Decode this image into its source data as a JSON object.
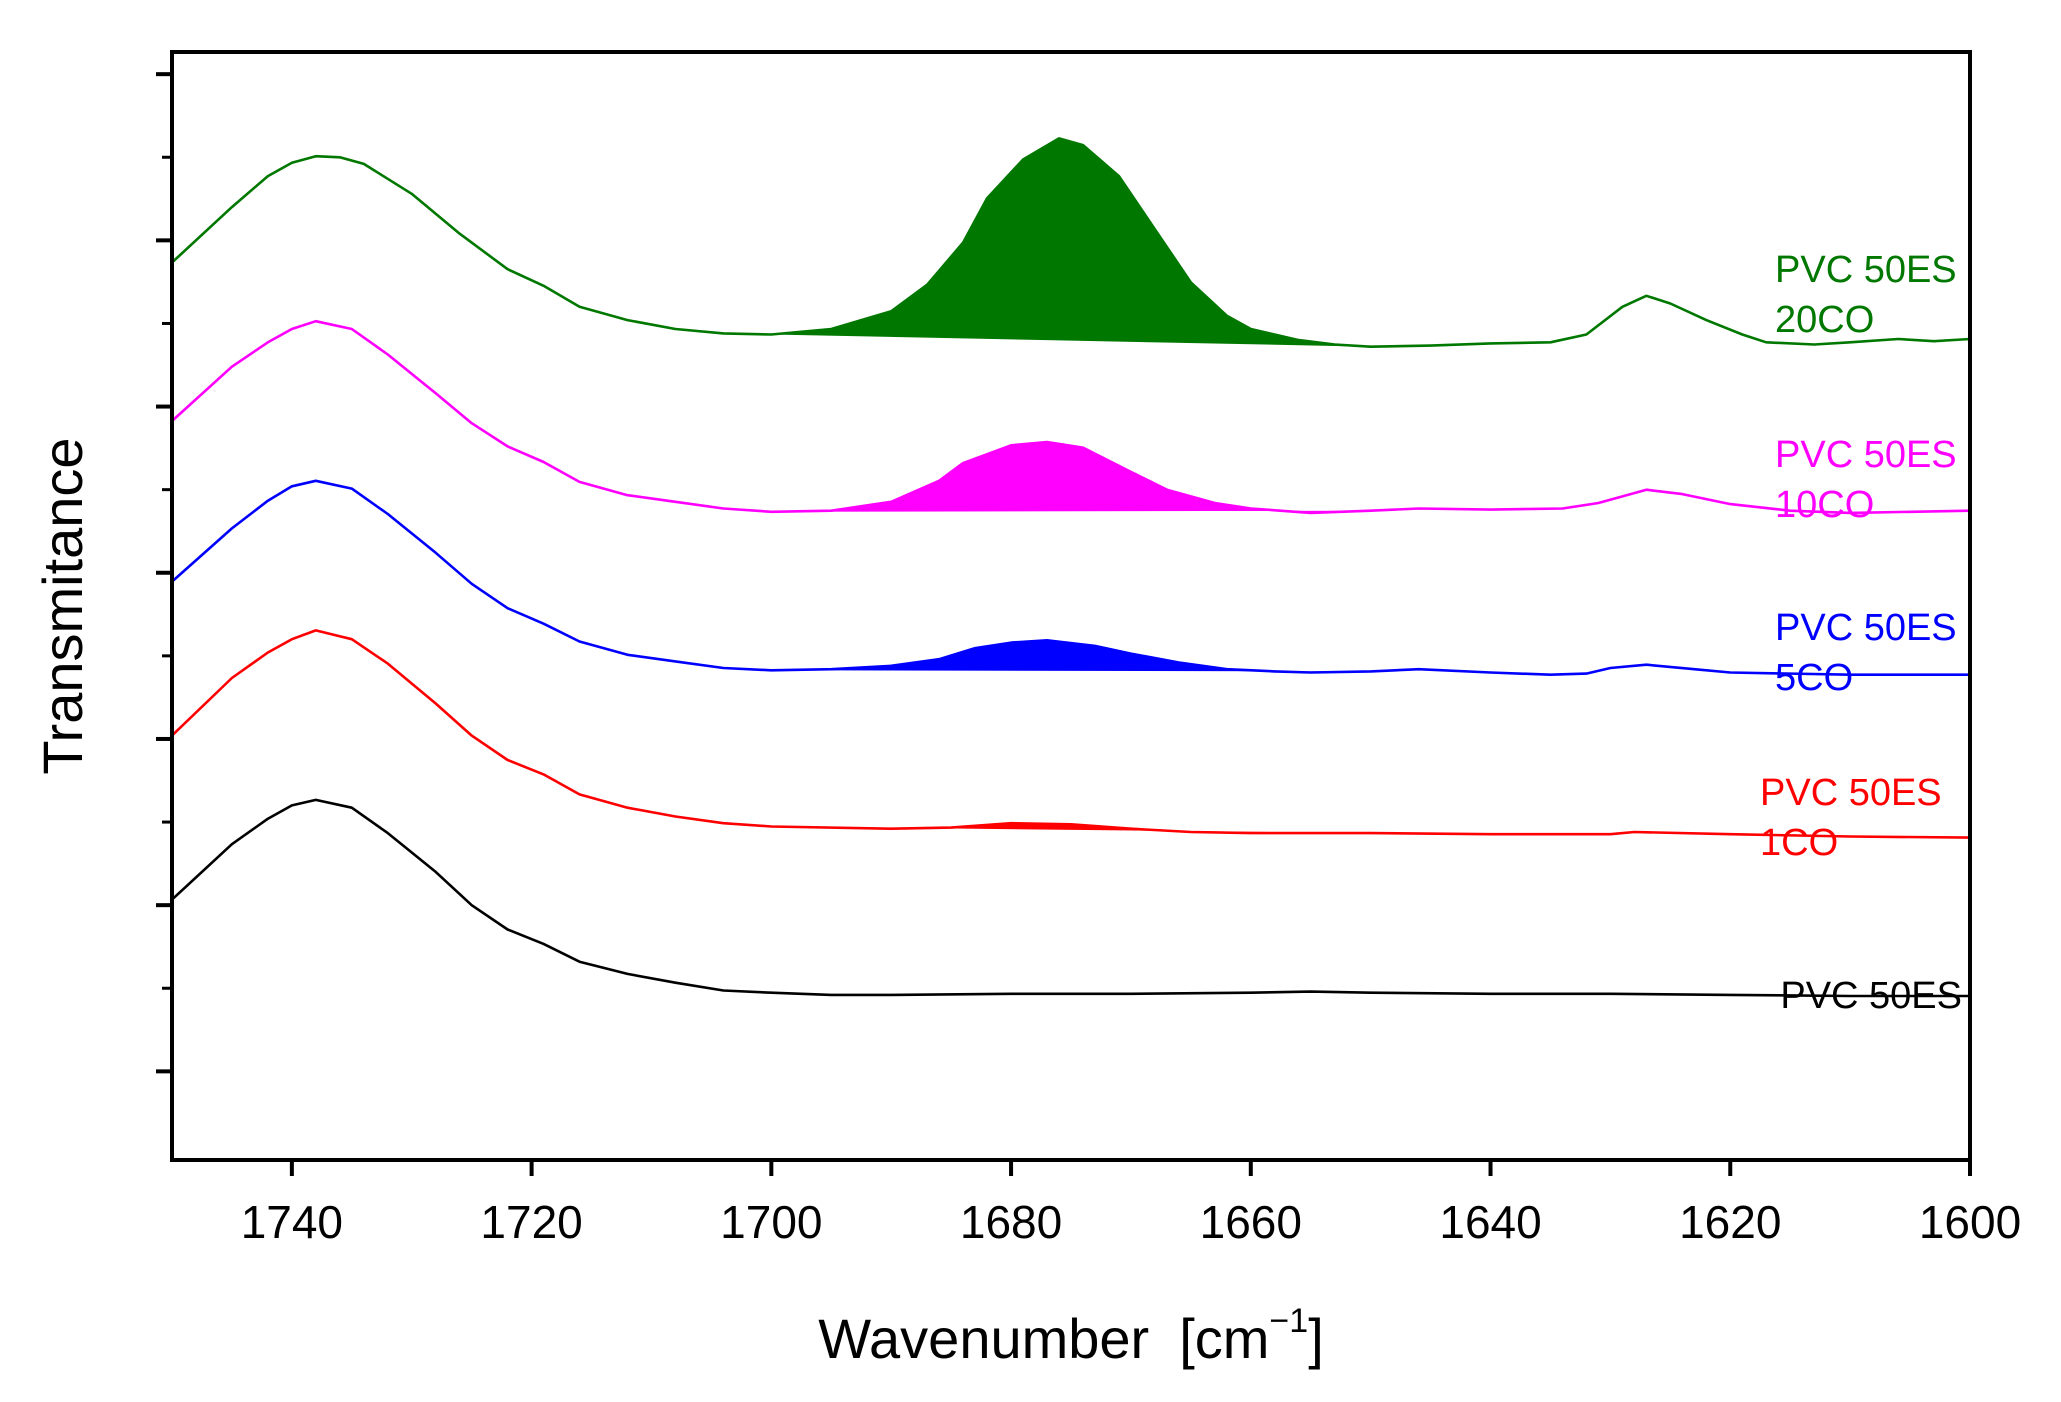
{
  "chart_data": {
    "type": "line",
    "xlabel": "Wavenumber",
    "xunit_base": "[cm",
    "xunit_exp": "−1",
    "xunit_close": "]",
    "ylabel": "Transmitance",
    "xlim": [
      1750,
      1600
    ],
    "x_reversed": true,
    "x_ticks": [
      1740,
      1720,
      1700,
      1680,
      1660,
      1640,
      1620,
      1600
    ],
    "y_ticks_unlabeled": true,
    "y_range": [
      0,
      100
    ],
    "fill_region": [
      1700,
      1650
    ],
    "series": [
      {
        "name": "PVC 50ES",
        "label_lines": [
          "PVC 50ES"
        ],
        "color": "#000000",
        "filled": false,
        "points": [
          [
            1750,
            23.5
          ],
          [
            1745,
            28.5
          ],
          [
            1742,
            30.8
          ],
          [
            1740,
            32.0
          ],
          [
            1738,
            32.5
          ],
          [
            1735,
            31.8
          ],
          [
            1732,
            29.5
          ],
          [
            1728,
            26.0
          ],
          [
            1725,
            23.0
          ],
          [
            1722,
            20.8
          ],
          [
            1719,
            19.5
          ],
          [
            1716,
            17.9
          ],
          [
            1712,
            16.8
          ],
          [
            1708,
            16.0
          ],
          [
            1704,
            15.3
          ],
          [
            1700,
            15.1
          ],
          [
            1695,
            14.9
          ],
          [
            1690,
            14.9
          ],
          [
            1680,
            15.0
          ],
          [
            1670,
            15.0
          ],
          [
            1660,
            15.1
          ],
          [
            1655,
            15.2
          ],
          [
            1650,
            15.1
          ],
          [
            1640,
            15.0
          ],
          [
            1630,
            15.0
          ],
          [
            1620,
            14.9
          ],
          [
            1610,
            14.8
          ],
          [
            1600,
            14.8
          ]
        ]
      },
      {
        "name": "PVC 50ES 1CO",
        "label_lines": [
          "PVC 50ES",
          "1CO"
        ],
        "color": "#ff0000",
        "filled": true,
        "points": [
          [
            1750,
            38.3
          ],
          [
            1745,
            43.5
          ],
          [
            1742,
            45.8
          ],
          [
            1740,
            47.0
          ],
          [
            1738,
            47.8
          ],
          [
            1735,
            47.0
          ],
          [
            1732,
            44.8
          ],
          [
            1728,
            41.2
          ],
          [
            1725,
            38.3
          ],
          [
            1722,
            36.1
          ],
          [
            1719,
            34.8
          ],
          [
            1716,
            33.0
          ],
          [
            1712,
            31.8
          ],
          [
            1708,
            31.0
          ],
          [
            1704,
            30.4
          ],
          [
            1700,
            30.1
          ],
          [
            1690,
            29.9
          ],
          [
            1685,
            30.0
          ],
          [
            1680,
            30.4
          ],
          [
            1675,
            30.3
          ],
          [
            1670,
            29.9
          ],
          [
            1665,
            29.6
          ],
          [
            1660,
            29.5
          ],
          [
            1655,
            29.5
          ],
          [
            1650,
            29.5
          ],
          [
            1640,
            29.4
          ],
          [
            1630,
            29.4
          ],
          [
            1628,
            29.6
          ],
          [
            1620,
            29.4
          ],
          [
            1610,
            29.2
          ],
          [
            1600,
            29.1
          ]
        ]
      },
      {
        "name": "PVC 50ES 5CO",
        "label_lines": [
          "PVC 50ES",
          "5CO"
        ],
        "color": "#0000ff",
        "filled": true,
        "points": [
          [
            1750,
            52.2
          ],
          [
            1745,
            57.0
          ],
          [
            1742,
            59.5
          ],
          [
            1740,
            60.8
          ],
          [
            1738,
            61.3
          ],
          [
            1735,
            60.6
          ],
          [
            1732,
            58.3
          ],
          [
            1728,
            54.8
          ],
          [
            1725,
            52.0
          ],
          [
            1722,
            49.8
          ],
          [
            1719,
            48.4
          ],
          [
            1716,
            46.8
          ],
          [
            1712,
            45.6
          ],
          [
            1708,
            45.0
          ],
          [
            1704,
            44.4
          ],
          [
            1700,
            44.2
          ],
          [
            1695,
            44.3
          ],
          [
            1690,
            44.6
          ],
          [
            1686,
            45.2
          ],
          [
            1683,
            46.2
          ],
          [
            1680,
            46.7
          ],
          [
            1677,
            46.9
          ],
          [
            1673,
            46.4
          ],
          [
            1670,
            45.7
          ],
          [
            1666,
            44.9
          ],
          [
            1662,
            44.3
          ],
          [
            1658,
            44.1
          ],
          [
            1655,
            44.0
          ],
          [
            1650,
            44.1
          ],
          [
            1646,
            44.3
          ],
          [
            1640,
            44.0
          ],
          [
            1635,
            43.8
          ],
          [
            1632,
            43.9
          ],
          [
            1630,
            44.4
          ],
          [
            1627,
            44.7
          ],
          [
            1623,
            44.3
          ],
          [
            1620,
            44.0
          ],
          [
            1610,
            43.8
          ],
          [
            1600,
            43.8
          ]
        ]
      },
      {
        "name": "PVC 50ES 10CO",
        "label_lines": [
          "PVC 50ES",
          "10CO"
        ],
        "color": "#ff00ff",
        "filled": true,
        "points": [
          [
            1750,
            66.7
          ],
          [
            1745,
            71.6
          ],
          [
            1742,
            73.8
          ],
          [
            1740,
            75.0
          ],
          [
            1738,
            75.7
          ],
          [
            1735,
            75.0
          ],
          [
            1732,
            72.7
          ],
          [
            1728,
            69.2
          ],
          [
            1725,
            66.5
          ],
          [
            1722,
            64.4
          ],
          [
            1719,
            63.0
          ],
          [
            1716,
            61.2
          ],
          [
            1712,
            60.0
          ],
          [
            1708,
            59.4
          ],
          [
            1704,
            58.8
          ],
          [
            1700,
            58.5
          ],
          [
            1695,
            58.6
          ],
          [
            1690,
            59.4
          ],
          [
            1686,
            61.3
          ],
          [
            1684,
            62.9
          ],
          [
            1680,
            64.5
          ],
          [
            1677,
            64.8
          ],
          [
            1674,
            64.3
          ],
          [
            1670,
            62.1
          ],
          [
            1667,
            60.5
          ],
          [
            1663,
            59.3
          ],
          [
            1660,
            58.8
          ],
          [
            1655,
            58.4
          ],
          [
            1650,
            58.6
          ],
          [
            1646,
            58.8
          ],
          [
            1640,
            58.7
          ],
          [
            1634,
            58.8
          ],
          [
            1631,
            59.3
          ],
          [
            1627,
            60.5
          ],
          [
            1624,
            60.1
          ],
          [
            1620,
            59.2
          ],
          [
            1615,
            58.6
          ],
          [
            1610,
            58.4
          ],
          [
            1600,
            58.6
          ]
        ]
      },
      {
        "name": "PVC 50ES 20CO",
        "label_lines": [
          "PVC 50ES",
          "20CO"
        ],
        "color": "#007800",
        "filled": true,
        "points": [
          [
            1750,
            81.0
          ],
          [
            1745,
            86.0
          ],
          [
            1742,
            88.8
          ],
          [
            1740,
            90.0
          ],
          [
            1738,
            90.6
          ],
          [
            1736,
            90.5
          ],
          [
            1734,
            89.9
          ],
          [
            1730,
            87.2
          ],
          [
            1726,
            83.6
          ],
          [
            1722,
            80.4
          ],
          [
            1719,
            78.9
          ],
          [
            1716,
            77.0
          ],
          [
            1712,
            75.8
          ],
          [
            1708,
            75.0
          ],
          [
            1704,
            74.6
          ],
          [
            1700,
            74.5
          ],
          [
            1695,
            75.0
          ],
          [
            1690,
            76.6
          ],
          [
            1687,
            79.0
          ],
          [
            1684,
            82.8
          ],
          [
            1682,
            86.8
          ],
          [
            1679,
            90.3
          ],
          [
            1676,
            92.2
          ],
          [
            1674,
            91.6
          ],
          [
            1671,
            88.8
          ],
          [
            1668,
            84.0
          ],
          [
            1665,
            79.2
          ],
          [
            1662,
            76.2
          ],
          [
            1660,
            75.0
          ],
          [
            1656,
            74.0
          ],
          [
            1653,
            73.6
          ],
          [
            1650,
            73.4
          ],
          [
            1645,
            73.5
          ],
          [
            1640,
            73.7
          ],
          [
            1635,
            73.8
          ],
          [
            1632,
            74.5
          ],
          [
            1629,
            77.0
          ],
          [
            1627,
            78.0
          ],
          [
            1625,
            77.3
          ],
          [
            1622,
            75.8
          ],
          [
            1619,
            74.5
          ],
          [
            1617,
            73.8
          ],
          [
            1613,
            73.6
          ],
          [
            1610,
            73.8
          ],
          [
            1606,
            74.1
          ],
          [
            1603,
            73.9
          ],
          [
            1600,
            74.1
          ]
        ]
      }
    ]
  }
}
